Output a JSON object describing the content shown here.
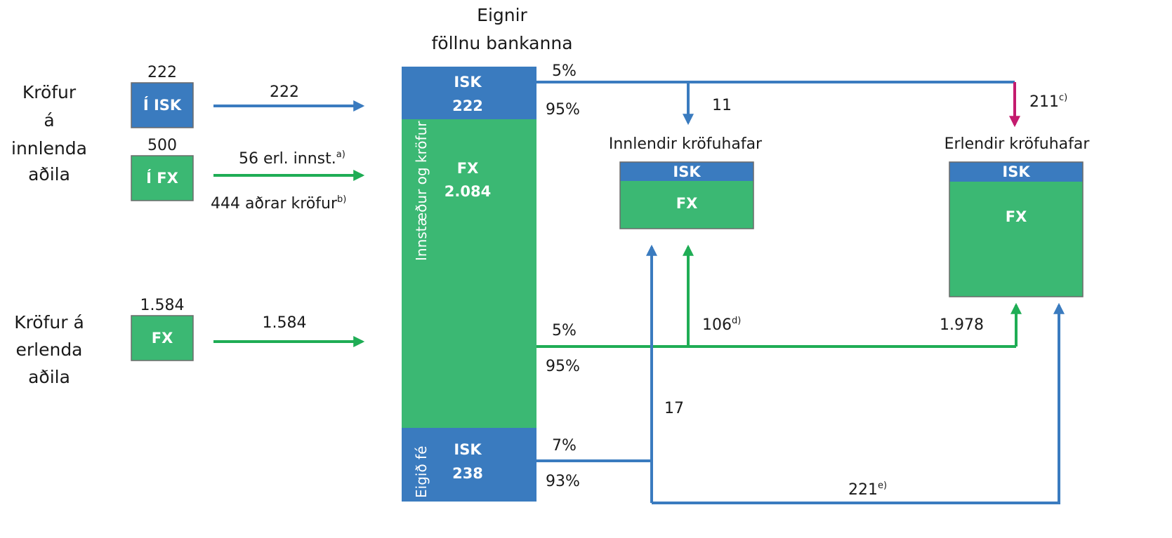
{
  "header": {
    "line1": "Eignir",
    "line2": "föllnu bankanna"
  },
  "left": {
    "domestic": {
      "lines": [
        "Kröfur",
        "á",
        "innlenda",
        "aðila"
      ]
    },
    "foreign": {
      "lines": [
        "Kröfur á",
        "erlenda",
        "aðila"
      ]
    },
    "box_isk": {
      "label": "Í ISK",
      "total": "222"
    },
    "box_fx": {
      "label": "Í FX",
      "total": "500"
    },
    "box_fx2": {
      "label": "FX",
      "total": "1.584"
    },
    "arrow_isk": {
      "label": "222"
    },
    "arrow_fx": {
      "top_value": "56 erl. innst.",
      "top_note": "a)",
      "bottom_value": "444 aðrar kröfur",
      "bottom_note": "b)"
    },
    "arrow_fx2": {
      "label": "1.584"
    }
  },
  "center": {
    "isk_top": {
      "label": "ISK",
      "value": "222"
    },
    "fx": {
      "label": "FX",
      "value": "2.084"
    },
    "isk_bottom": {
      "label": "ISK",
      "value": "238"
    },
    "rot_deposits": "Innstæður og kröfur",
    "rot_equity": "Eigið fé"
  },
  "flows": {
    "isk_split_top": "5%",
    "isk_split_bottom": "95%",
    "to_dom_isk": "11",
    "to_for_isk": "211",
    "to_for_isk_note": "c)",
    "fx_split_top": "5%",
    "fx_split_bottom": "95%",
    "to_dom_fx": "106",
    "to_dom_fx_note": "d)",
    "to_for_fx": "1.978",
    "eq_split_top": "7%",
    "eq_split_bottom": "93%",
    "eq_to_dom": "17",
    "eq_to_for": "221",
    "eq_to_for_note": "e)"
  },
  "right": {
    "domestic": {
      "title": "Innlendir kröfuhafar",
      "isk": "ISK",
      "fx": "FX"
    },
    "foreign": {
      "title": "Erlendir kröfuhafar",
      "isk": "ISK",
      "fx": "FX"
    }
  },
  "colors": {
    "isk": "#3a7bbf",
    "fx": "#3bb873",
    "arrow_isk": "#3a7bbf",
    "arrow_fx": "#1fad55",
    "highlight": "#c41b6e",
    "edge": "#6b6b6b"
  }
}
